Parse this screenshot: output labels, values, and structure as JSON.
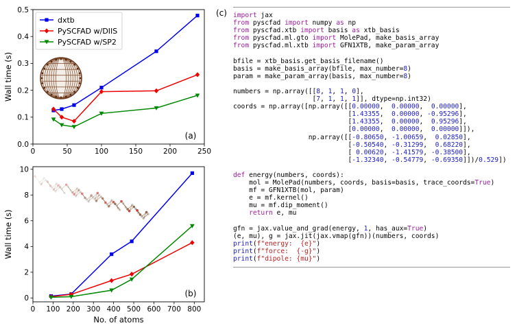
{
  "chart_data": [
    {
      "type": "line",
      "panel": "(a)",
      "xlabel": "",
      "ylabel": "Wall time (s)",
      "xlim": [
        0,
        250
      ],
      "ylim": [
        0,
        0.5
      ],
      "xticks": [
        "0",
        "50",
        "100",
        "150",
        "200",
        "250"
      ],
      "yticks": [
        "0.0",
        "0.1",
        "0.2",
        "0.3",
        "0.4",
        "0.5"
      ],
      "legend": "top-left",
      "inset_image": "fullerene-molecule",
      "series": [
        {
          "name": "dxtb",
          "color": "#0000ee",
          "marker": "square",
          "x": [
            30,
            42,
            60,
            100,
            180,
            240
          ],
          "y": [
            0.125,
            0.13,
            0.145,
            0.21,
            0.345,
            0.478
          ]
        },
        {
          "name": "PySCFAD w/DIIS",
          "color": "#ee0000",
          "marker": "diamond",
          "x": [
            30,
            42,
            60,
            100,
            180,
            240
          ],
          "y": [
            0.13,
            0.1,
            0.085,
            0.195,
            0.198,
            0.258
          ]
        },
        {
          "name": "PySCFAD w/SP2",
          "color": "#008800",
          "marker": "triangle-down",
          "x": [
            30,
            42,
            60,
            100,
            180,
            240
          ],
          "y": [
            0.092,
            0.071,
            0.064,
            0.114,
            0.134,
            0.181
          ]
        }
      ]
    },
    {
      "type": "line",
      "panel": "(b)",
      "xlabel": "No. of atoms",
      "ylabel": "Wall time (s)",
      "xlim": [
        0,
        850
      ],
      "ylim": [
        -0.3,
        10.2
      ],
      "xticks": [
        "0",
        "100",
        "200",
        "300",
        "400",
        "500",
        "600",
        "700",
        "800"
      ],
      "yticks": [
        "0",
        "2",
        "4",
        "6",
        "8",
        "10"
      ],
      "inset_image": "molecular-structure-chain",
      "series": [
        {
          "name": "dxtb",
          "color": "#0000ee",
          "marker": "square",
          "x": [
            90,
            190,
            390,
            490,
            790
          ],
          "y": [
            0.15,
            0.3,
            3.4,
            4.4,
            9.7
          ]
        },
        {
          "name": "PySCFAD w/DIIS",
          "color": "#ee0000",
          "marker": "diamond",
          "x": [
            90,
            190,
            390,
            490,
            790
          ],
          "y": [
            0.1,
            0.28,
            1.35,
            1.85,
            4.3
          ]
        },
        {
          "name": "PySCFAD w/SP2",
          "color": "#008800",
          "marker": "triangle-down",
          "x": [
            90,
            190,
            390,
            490,
            790
          ],
          "y": [
            0.05,
            0.1,
            0.6,
            1.45,
            5.6
          ]
        }
      ]
    }
  ],
  "code_panel": {
    "label": "(c)",
    "lines": [
      "import jax",
      "from pyscfad import numpy as np",
      "from pyscfad.xtb import basis as xtb_basis",
      "from pyscfad.ml.gto import MolePad, make_basis_array",
      "from pyscfad.ml.xtb import GFN1XTB, make_param_array",
      "",
      "bfile = xtb_basis.get_basis_filename()",
      "basis = make_basis_array(bfile, max_number=8)",
      "param = make_param_array(basis, max_number=8)",
      "",
      "numbers = np.array([[8, 1, 1, 0],",
      "                    [7, 1, 1, 1]], dtype=np.int32)",
      "coords = np.array([np.array([[0.00000,  0.00000,  0.00000],",
      "                             [1.43355,  0.00000, -0.95296],",
      "                             [1.43355,  0.00000,  0.95296],",
      "                             [0.00000,  0.00000,  0.00000]]),",
      "                   np.array([[-0.80650, -1.00659,  0.02850],",
      "                             [-0.50540, -0.31299,  0.68220],",
      "                             [ 0.00620, -1.41579, -0.38500],",
      "                             [-1.32340, -0.54779, -0.69350]])/0.529])",
      "",
      "def energy(numbers, coords):",
      "    mol = MolePad(numbers, coords, basis=basis, trace_coords=True)",
      "    mf = GFN1XTB(mol, param)",
      "    e = mf.kernel()",
      "    mu = mf.dip_moment()",
      "    return e, mu",
      "",
      "gfn = jax.value_and_grad(energy, 1, has_aux=True)",
      "(e, mu), g = jax.jit(jax.vmap(gfn))(numbers, coords)",
      "print(f\"energy:  {e}\")",
      "print(f\"force:  {-g}\")",
      "print(f\"dipole: {mu}\")"
    ]
  }
}
